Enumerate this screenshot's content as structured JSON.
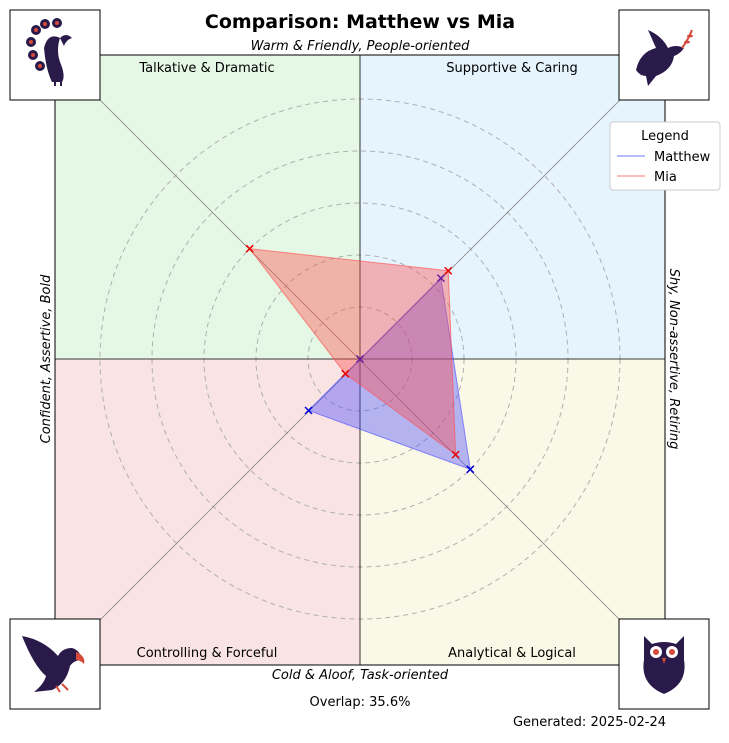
{
  "chart_data": {
    "type": "radar",
    "title": "Comparison: Matthew vs Mia",
    "axis_labels": {
      "top": "Warm & Friendly, People-oriented",
      "bottom": "Cold & Aloof, Task-oriented",
      "left": "Confident, Assertive, Bold",
      "right": "Shy, Non-assertive, Retiring"
    },
    "quadrants": [
      {
        "label": "Talkative & Dramatic",
        "color": "#e5f8e5",
        "animal": "peacock-icon"
      },
      {
        "label": "Supportive & Caring",
        "color": "#e5f4fd",
        "animal": "dove-icon"
      },
      {
        "label": "Controlling & Forceful",
        "color": "#f9e3e3",
        "animal": "eagle-icon"
      },
      {
        "label": "Analytical & Logical",
        "color": "#faf8e6",
        "animal": "owl-icon"
      }
    ],
    "directions": [
      "Talkative & Dramatic",
      "Supportive & Caring",
      "Analytical & Logical",
      "Controlling & Forceful"
    ],
    "r_max": 5,
    "rings": [
      1,
      2,
      3,
      4,
      5
    ],
    "grid": true,
    "legend": {
      "title": "Legend",
      "placement": "top-right"
    },
    "series": [
      {
        "name": "Matthew",
        "color": "#4a4aff",
        "values": [
          0,
          2.2,
          3.0,
          1.4
        ]
      },
      {
        "name": "Mia",
        "color": "#ff4a4a",
        "values": [
          3.0,
          2.4,
          2.6,
          0.4
        ]
      }
    ],
    "overlap_label": "Overlap: 35.6%",
    "generated_label": "Generated: 2025-02-24"
  }
}
